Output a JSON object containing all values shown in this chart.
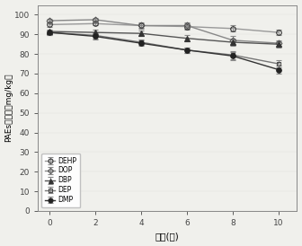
{
  "x": [
    0,
    2,
    4,
    6,
    8,
    10
  ],
  "DEHP": [
    95.0,
    95.5,
    94.5,
    94.0,
    93.0,
    91.0
  ],
  "DOP": [
    97.0,
    97.5,
    94.5,
    94.5,
    87.0,
    85.5
  ],
  "DBP": [
    91.5,
    91.0,
    90.5,
    88.0,
    86.0,
    85.0
  ],
  "DEP": [
    91.0,
    89.5,
    86.0,
    82.0,
    79.5,
    75.0
  ],
  "DMP": [
    91.0,
    89.0,
    85.5,
    82.0,
    79.0,
    72.0
  ],
  "DEHP_err": [
    1.2,
    1.0,
    1.0,
    1.5,
    1.5,
    1.5
  ],
  "DOP_err": [
    1.0,
    1.0,
    1.5,
    1.5,
    2.0,
    1.5
  ],
  "DBP_err": [
    1.0,
    1.5,
    1.5,
    1.5,
    2.0,
    1.5
  ],
  "DEP_err": [
    1.2,
    1.5,
    1.5,
    1.5,
    2.0,
    2.0
  ],
  "DMP_err": [
    1.2,
    1.5,
    1.5,
    1.5,
    2.0,
    2.0
  ],
  "xlabel": "时间(天)",
  "ylabel": "PAEs残留量（mg/kg）",
  "ylim": [
    0,
    105
  ],
  "yticks": [
    0,
    10,
    20,
    30,
    40,
    50,
    60,
    70,
    80,
    90,
    100
  ],
  "xlim": [
    -0.5,
    10.8
  ],
  "xticks": [
    0,
    2,
    4,
    6,
    8,
    10
  ],
  "bg_color": "#f0f0ec",
  "legend_loc": "lower left",
  "series": [
    {
      "name": "DEHP",
      "marker": "o",
      "mfc": "none",
      "mec": "#333333",
      "color": "#999999",
      "ms": 4
    },
    {
      "name": "DOP",
      "marker": "D",
      "mfc": "none",
      "mec": "#555555",
      "color": "#888888",
      "ms": 3.5
    },
    {
      "name": "DBP",
      "marker": "^",
      "mfc": "#333333",
      "mec": "#333333",
      "color": "#555555",
      "ms": 4
    },
    {
      "name": "DEP",
      "marker": "s",
      "mfc": "none",
      "mec": "#444444",
      "color": "#777777",
      "ms": 3.5
    },
    {
      "name": "DMP",
      "marker": "o",
      "mfc": "#222222",
      "mec": "#222222",
      "color": "#333333",
      "ms": 4
    }
  ]
}
